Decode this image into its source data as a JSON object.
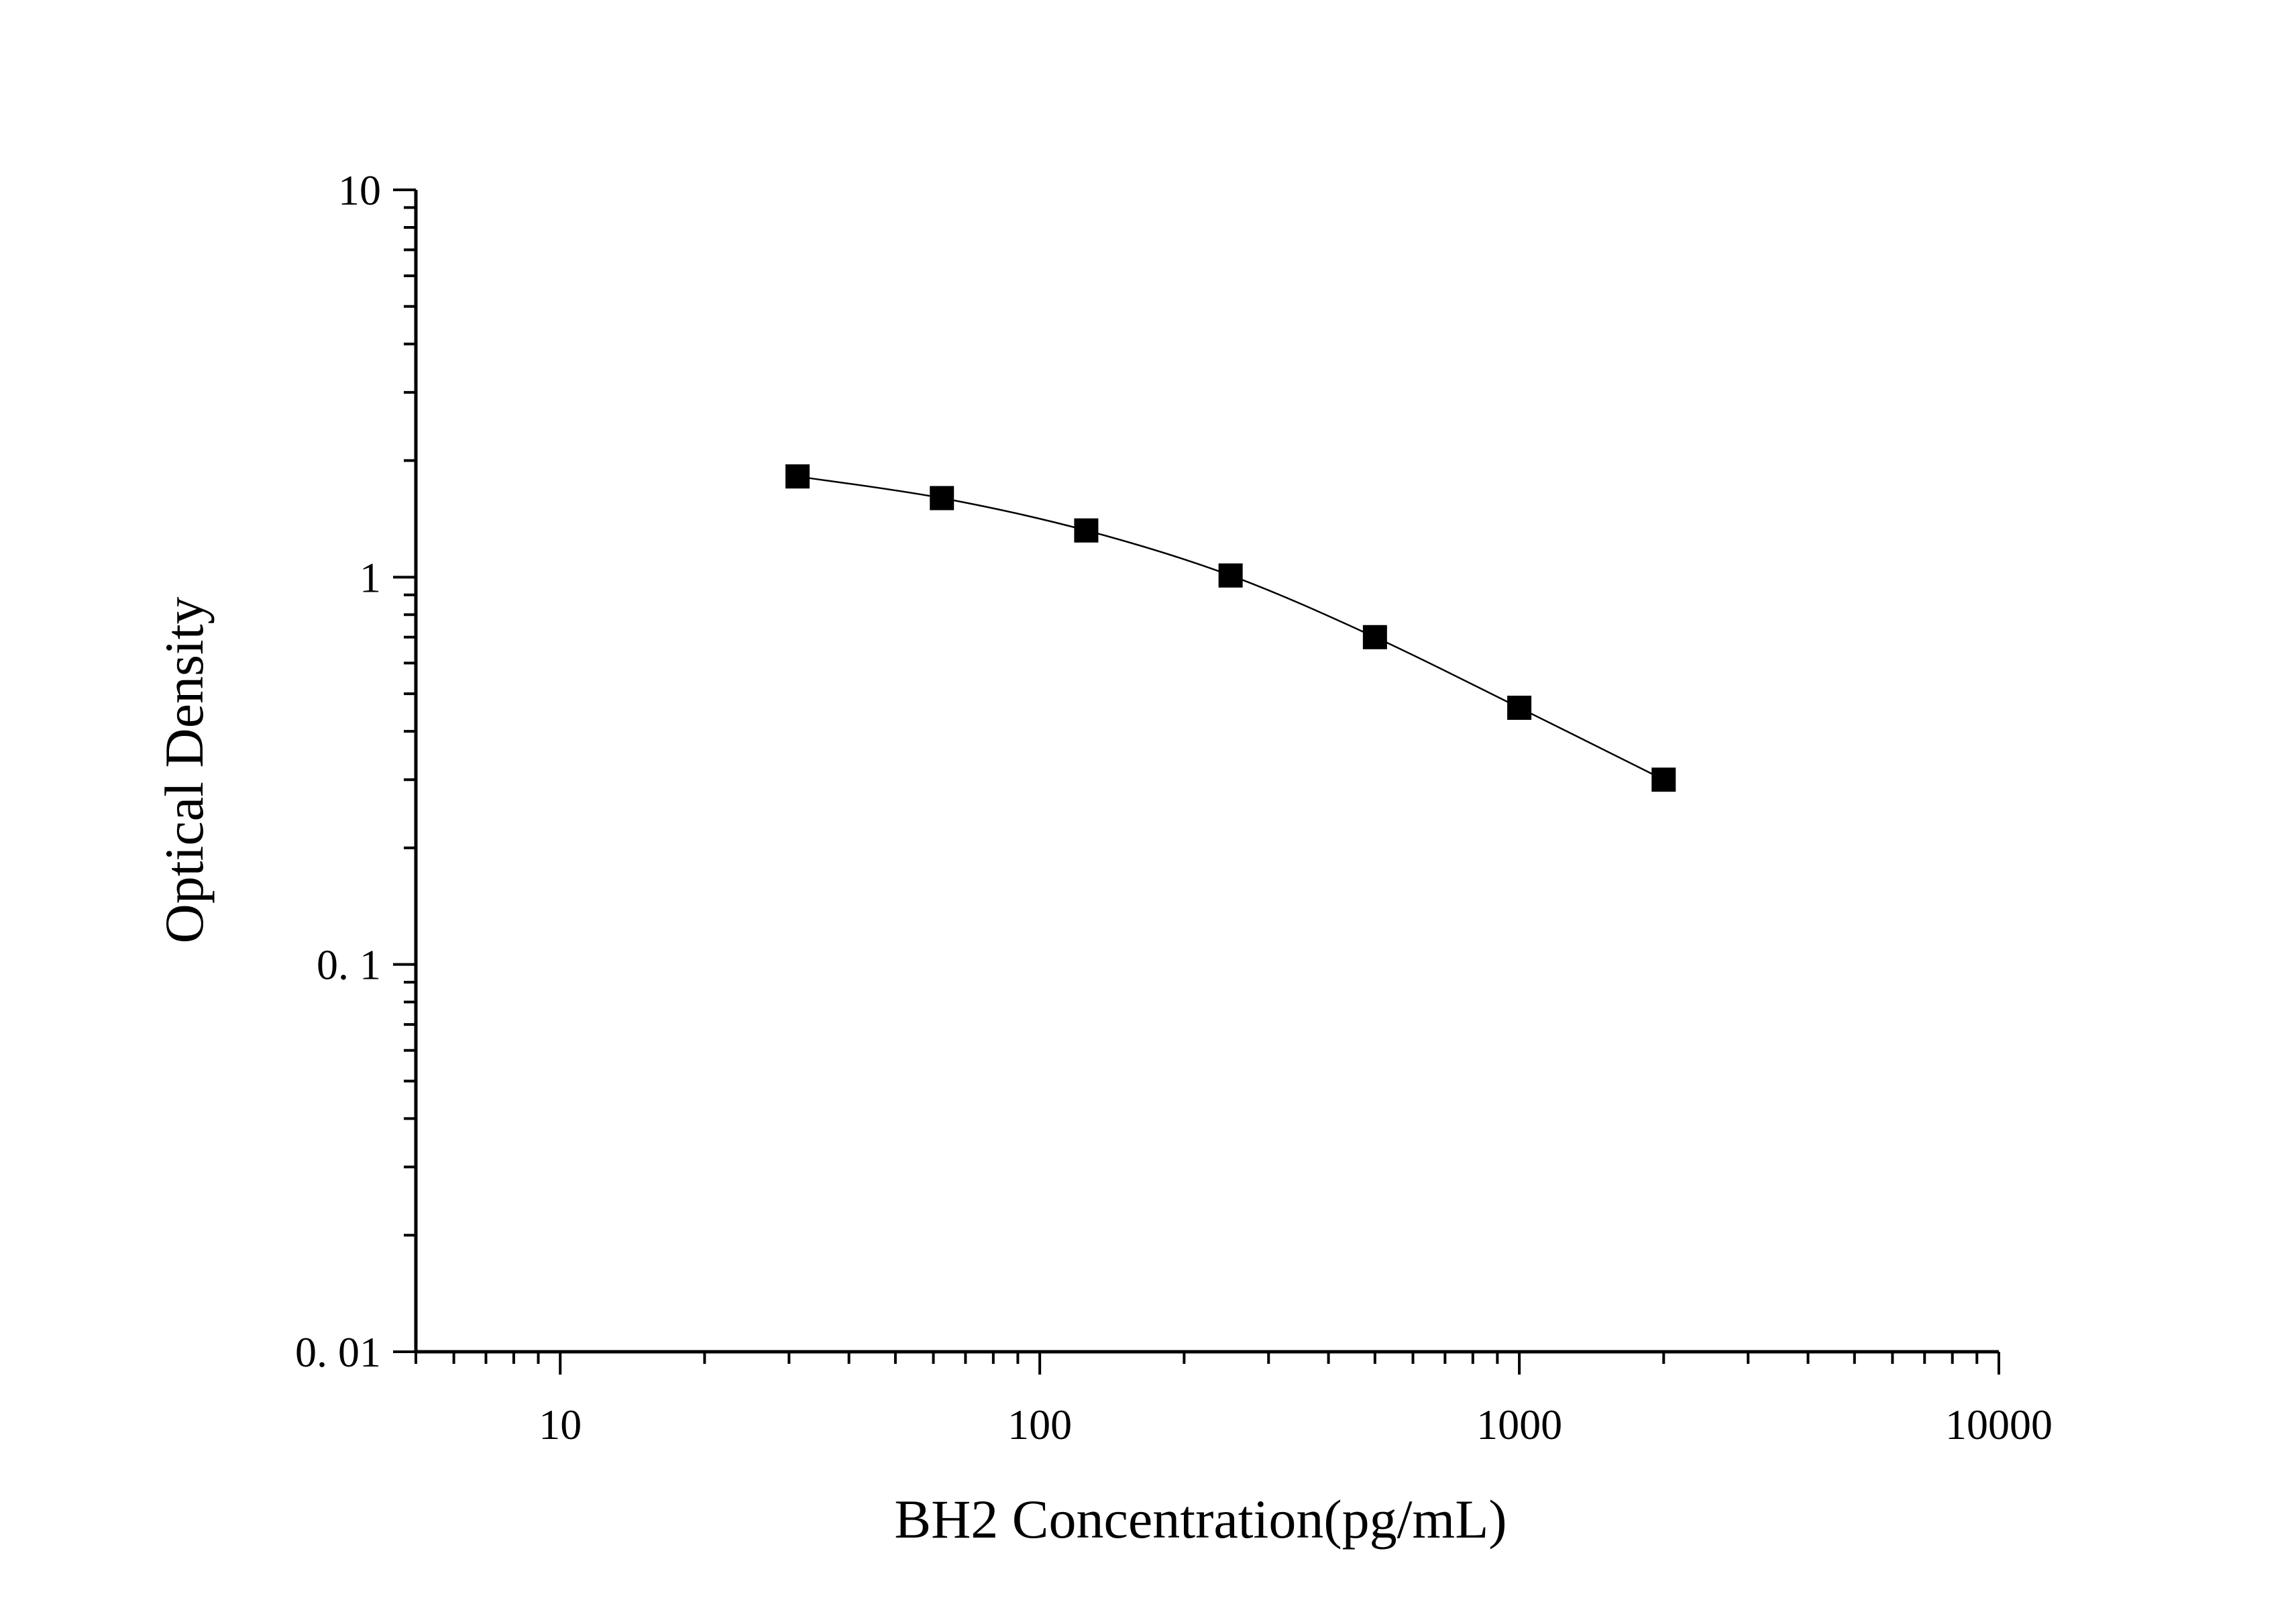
{
  "chart_data": {
    "type": "line",
    "title": "",
    "xlabel": "BH2 Concentration(pg/mL)",
    "ylabel": "Optical Density",
    "x_scale": "log",
    "y_scale": "log",
    "xlim": [
      5,
      10000
    ],
    "ylim": [
      0.01,
      10
    ],
    "x_ticks": [
      {
        "value": 10,
        "label": "10"
      },
      {
        "value": 100,
        "label": "100"
      },
      {
        "value": 1000,
        "label": "1000"
      },
      {
        "value": 10000,
        "label": "10000"
      }
    ],
    "y_ticks": [
      {
        "value": 0.01,
        "label": "0. 01"
      },
      {
        "value": 0.1,
        "label": "0. 1"
      },
      {
        "value": 1,
        "label": "1"
      },
      {
        "value": 10,
        "label": "10"
      }
    ],
    "grid": false,
    "legend": "none",
    "marker": "square",
    "color": "#000000",
    "series": [
      {
        "x": [
          31.25,
          62.5,
          125,
          250,
          500,
          1000,
          2000
        ],
        "y": [
          1.82,
          1.6,
          1.32,
          1.01,
          0.7,
          0.46,
          0.3
        ]
      }
    ]
  }
}
